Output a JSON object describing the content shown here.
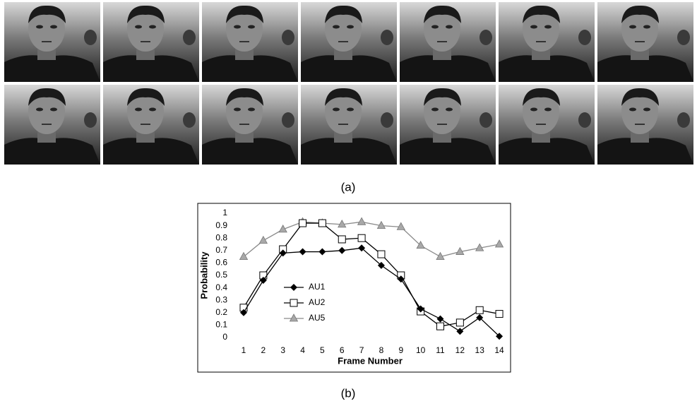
{
  "panel_labels": [
    "(a)",
    "(b)"
  ],
  "chart_data": {
    "type": "line",
    "x_label": "Frame Number",
    "y_label": "Probability",
    "categories": [
      "1",
      "2",
      "3",
      "4",
      "5",
      "6",
      "7",
      "8",
      "9",
      "10",
      "11",
      "12",
      "13",
      "14"
    ],
    "series": [
      {
        "name": "AU1",
        "color": "#000000",
        "marker": "diamond",
        "values": [
          0.2,
          0.46,
          0.68,
          0.69,
          0.69,
          0.7,
          0.72,
          0.58,
          0.47,
          0.23,
          0.15,
          0.05,
          0.16,
          0.01
        ]
      },
      {
        "name": "AU2",
        "color": "#000000",
        "marker": "square",
        "values": [
          0.24,
          0.5,
          0.71,
          0.92,
          0.92,
          0.79,
          0.8,
          0.67,
          0.5,
          0.21,
          0.09,
          0.12,
          0.22,
          0.19
        ]
      },
      {
        "name": "AU5",
        "color": "#8a8a8a",
        "marker": "triangle",
        "values": [
          0.65,
          0.78,
          0.87,
          0.93,
          0.92,
          0.91,
          0.93,
          0.9,
          0.89,
          0.74,
          0.65,
          0.69,
          0.72,
          0.75
        ]
      }
    ],
    "ylim": [
      0,
      1
    ],
    "yticks": [
      0,
      0.1,
      0.2,
      0.3,
      0.4,
      0.5,
      0.6,
      0.7,
      0.8,
      0.9,
      1
    ],
    "grid": false
  }
}
